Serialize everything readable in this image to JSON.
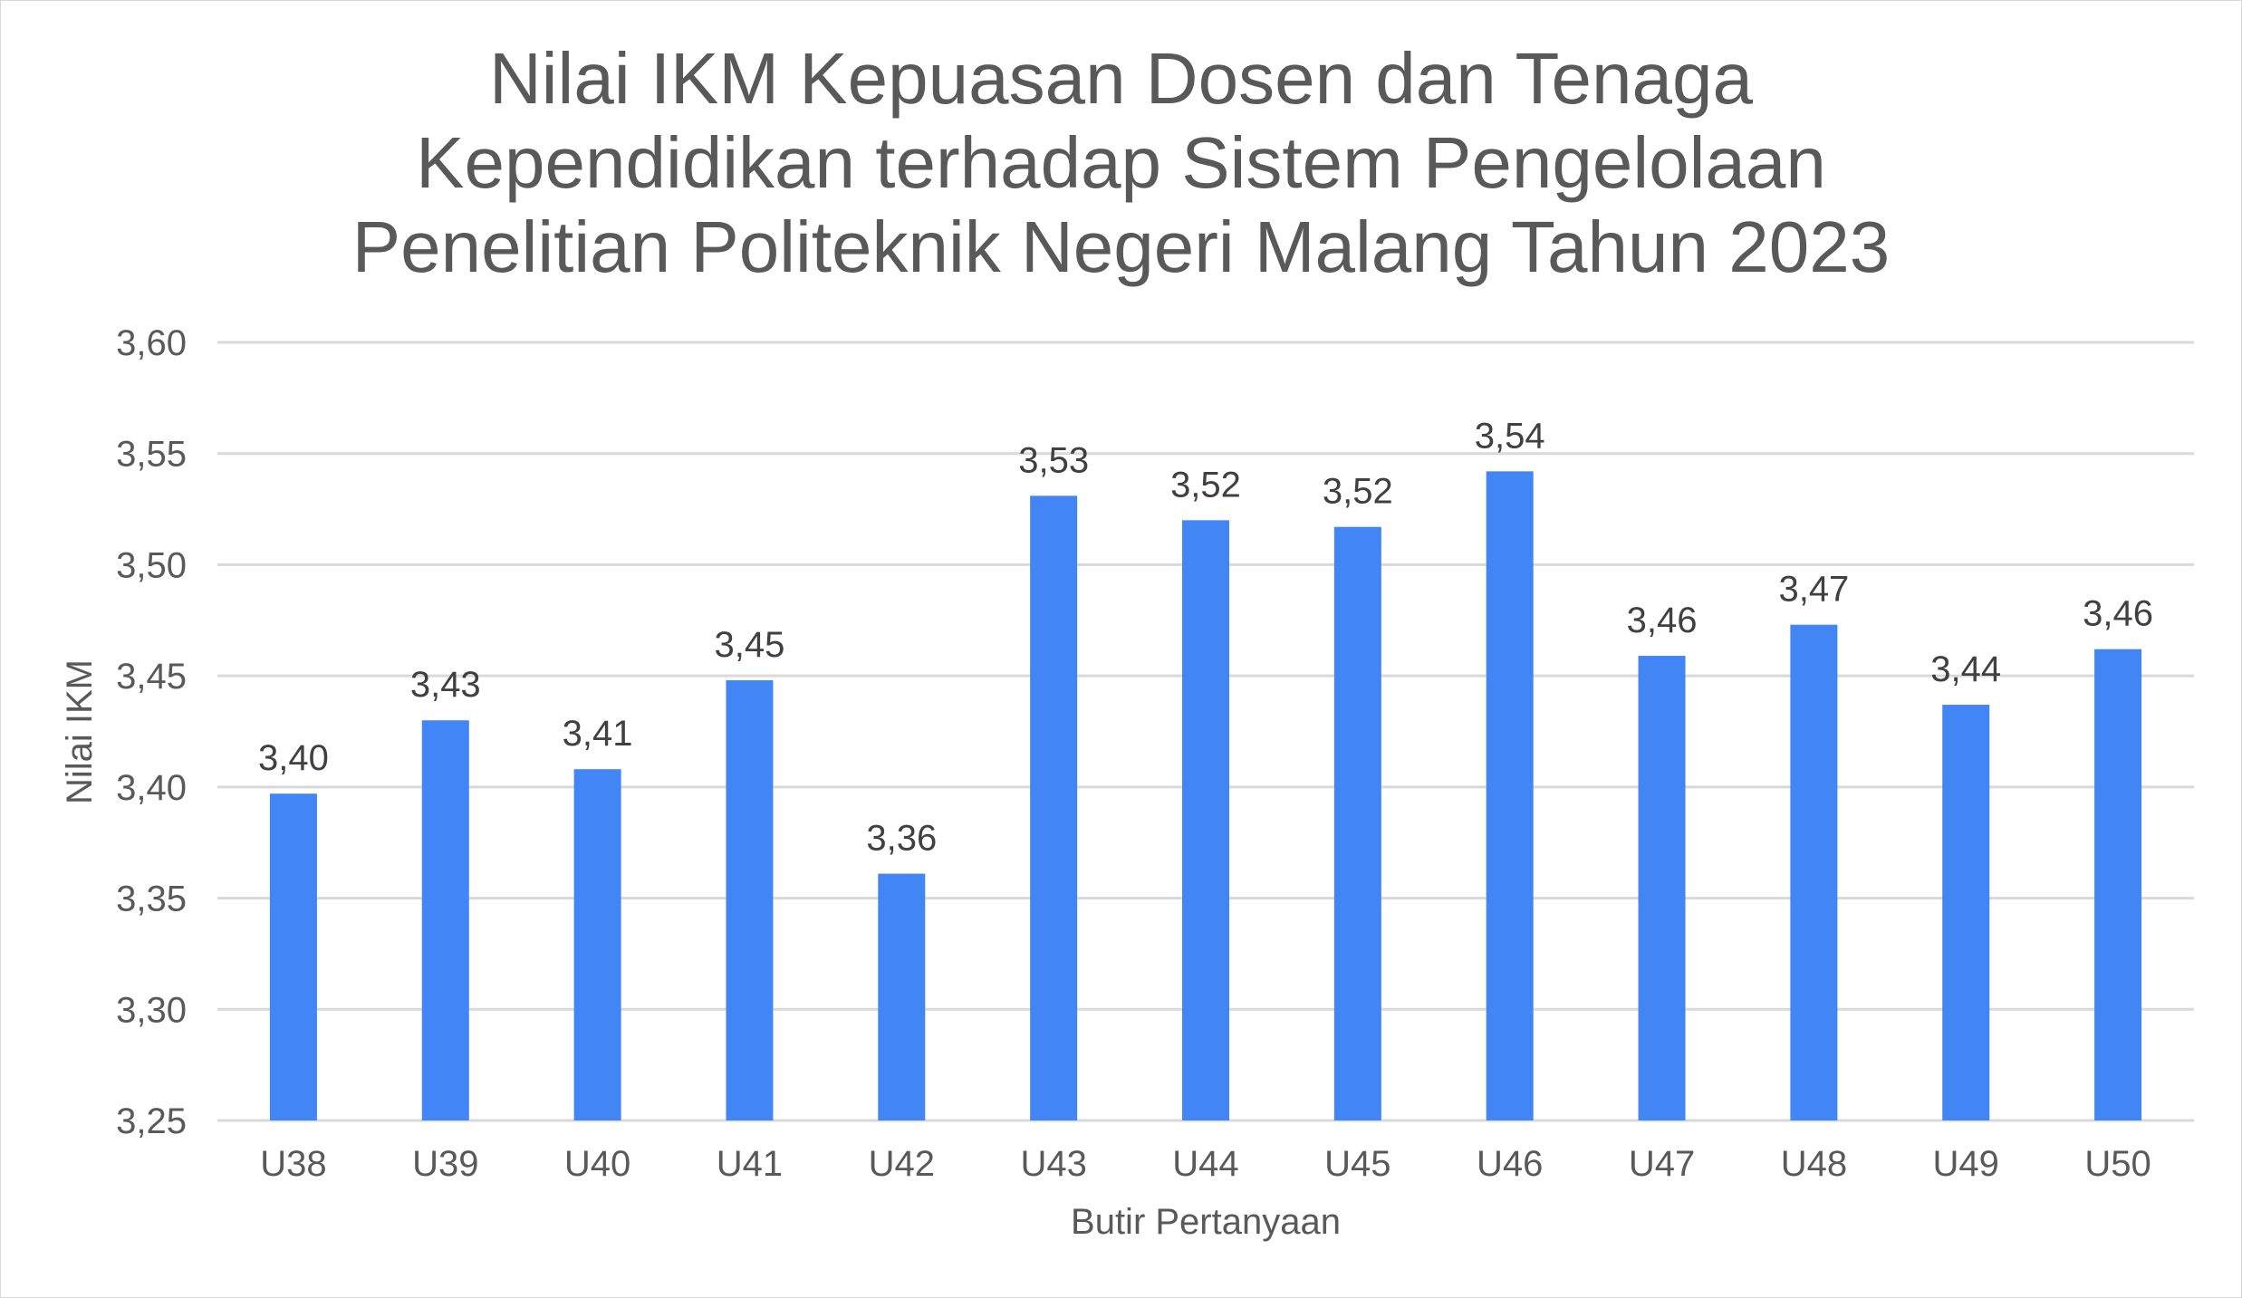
{
  "chart_data": {
    "type": "bar",
    "title": "Nilai IKM Kepuasan Dosen dan Tenaga Kependidikan terhadap Sistem Pengelolaan Penelitian Politeknik Negeri Malang Tahun 2023",
    "title_lines": [
      "Nilai IKM Kepuasan Dosen dan Tenaga",
      "Kependidikan terhadap Sistem Pengelolaan",
      "Penelitian Politeknik Negeri Malang Tahun 2023"
    ],
    "xlabel": "Butir Pertanyaan",
    "ylabel": "Nilai IKM",
    "categories": [
      "U38",
      "U39",
      "U40",
      "U41",
      "U42",
      "U43",
      "U44",
      "U45",
      "U46",
      "U47",
      "U48",
      "U49",
      "U50"
    ],
    "values": [
      3.397,
      3.43,
      3.408,
      3.448,
      3.361,
      3.531,
      3.52,
      3.517,
      3.542,
      3.459,
      3.473,
      3.437,
      3.462
    ],
    "data_labels": [
      "3,40",
      "3,43",
      "3,41",
      "3,45",
      "3,36",
      "3,53",
      "3,52",
      "3,52",
      "3,54",
      "3,46",
      "3,47",
      "3,44",
      "3,46"
    ],
    "ylim": [
      3.25,
      3.6
    ],
    "yticks": [
      "3,25",
      "3,30",
      "3,35",
      "3,40",
      "3,45",
      "3,50",
      "3,55",
      "3,60"
    ],
    "ytick_values": [
      3.25,
      3.3,
      3.35,
      3.4,
      3.45,
      3.5,
      3.55,
      3.6
    ],
    "grid": true,
    "legend": "none",
    "bar_color": "#4285f4",
    "grid_color": "#d9d9d9",
    "text_color": "#595959",
    "label_color": "#404040"
  }
}
